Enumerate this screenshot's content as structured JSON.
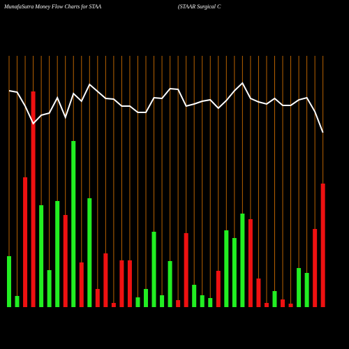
{
  "chart_data": {
    "type": "bar",
    "title": "MunafaSutra  Money Flow  Charts for STAA",
    "subtitle": "(STAAR Surgical C",
    "background": "#000000",
    "divider_color": "#b86200",
    "ylim": [
      0,
      360
    ],
    "bars": {
      "values": [
        73,
        16,
        186,
        309,
        146,
        53,
        152,
        132,
        238,
        64,
        156,
        26,
        77,
        6,
        67,
        67,
        14,
        26,
        108,
        17,
        66,
        10,
        106,
        32,
        17,
        13,
        52,
        110,
        99,
        134,
        126,
        41,
        6,
        23,
        11,
        5,
        56,
        49,
        112,
        177
      ],
      "colors": [
        "#22ee22",
        "#22ee22",
        "#ee1111",
        "#ee1111",
        "#22ee22",
        "#22ee22",
        "#22ee22",
        "#ee1111",
        "#22ee22",
        "#ee1111",
        "#22ee22",
        "#ee1111",
        "#ee1111",
        "#ee1111",
        "#ee1111",
        "#ee1111",
        "#22ee22",
        "#22ee22",
        "#22ee22",
        "#22ee22",
        "#22ee22",
        "#ee1111",
        "#ee1111",
        "#22ee22",
        "#22ee22",
        "#22ee22",
        "#ee1111",
        "#22ee22",
        "#22ee22",
        "#22ee22",
        "#ee1111",
        "#ee1111",
        "#ee1111",
        "#22ee22",
        "#ee1111",
        "#ee1111",
        "#22ee22",
        "#22ee22",
        "#ee1111",
        "#ee1111"
      ]
    },
    "line": {
      "color": "#ffffff",
      "values": [
        310,
        308,
        288,
        263,
        275,
        278,
        300,
        272,
        306,
        295,
        319,
        309,
        299,
        298,
        288,
        288,
        279,
        279,
        300,
        299,
        313,
        312,
        288,
        291,
        295,
        297,
        285,
        296,
        310,
        321,
        299,
        294,
        291,
        299,
        289,
        289,
        297,
        300,
        280,
        250
      ]
    }
  }
}
